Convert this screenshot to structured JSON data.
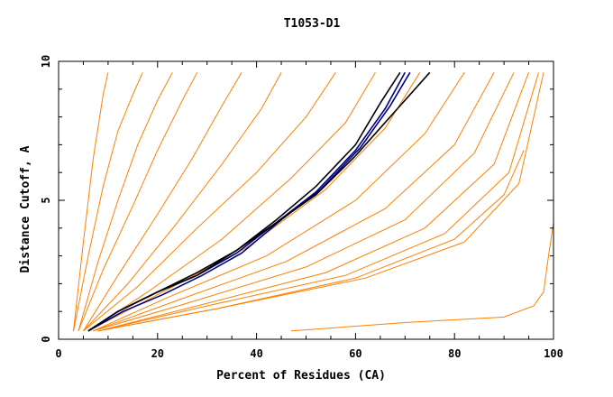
{
  "chart_data": {
    "type": "line",
    "title": "T1053-D1",
    "xlabel": "Percent of Residues (CA)",
    "ylabel": "Distance Cutoff, A",
    "xlim": [
      0,
      100
    ],
    "ylim": [
      0,
      10
    ],
    "x_ticks": [
      "0",
      "20",
      "40",
      "60",
      "80",
      "100"
    ],
    "y_ticks": [
      "0",
      "5",
      "10"
    ],
    "grid": false,
    "colors": {
      "models": "#ff8000",
      "highlight": "#000080",
      "reference": "#000000"
    },
    "series": [
      {
        "color": "#ff8000",
        "x": [
          3,
          5,
          7,
          9,
          10
        ],
        "y": [
          0.3,
          3.5,
          6.5,
          8.8,
          9.6
        ]
      },
      {
        "color": "#ff8000",
        "x": [
          3,
          6,
          9,
          12,
          15,
          17
        ],
        "y": [
          0.3,
          3.0,
          5.5,
          7.5,
          8.8,
          9.6
        ]
      },
      {
        "color": "#ff8000",
        "x": [
          4,
          8,
          12,
          16,
          20,
          23
        ],
        "y": [
          0.3,
          2.8,
          5.0,
          7.0,
          8.6,
          9.6
        ]
      },
      {
        "color": "#ff8000",
        "x": [
          4,
          9,
          15,
          20,
          25,
          28
        ],
        "y": [
          0.3,
          2.5,
          4.8,
          6.8,
          8.6,
          9.6
        ]
      },
      {
        "color": "#ff8000",
        "x": [
          5,
          12,
          20,
          27,
          33,
          37
        ],
        "y": [
          0.3,
          2.3,
          4.5,
          6.5,
          8.4,
          9.6
        ]
      },
      {
        "color": "#ff8000",
        "x": [
          5,
          14,
          24,
          33,
          41,
          45
        ],
        "y": [
          0.3,
          2.0,
          4.2,
          6.3,
          8.3,
          9.6
        ]
      },
      {
        "color": "#ff8000",
        "x": [
          5,
          16,
          28,
          40,
          50,
          56
        ],
        "y": [
          0.3,
          1.9,
          4.0,
          6.0,
          8.0,
          9.6
        ]
      },
      {
        "color": "#ff8000",
        "x": [
          6,
          18,
          33,
          47,
          58,
          64
        ],
        "y": [
          0.3,
          1.7,
          3.6,
          5.8,
          7.8,
          9.6
        ]
      },
      {
        "color": "#ff8000",
        "x": [
          6,
          20,
          38,
          54,
          66,
          73
        ],
        "y": [
          0.3,
          1.6,
          3.3,
          5.4,
          7.6,
          9.6
        ]
      },
      {
        "color": "#ff8000",
        "x": [
          7,
          22,
          42,
          60,
          74,
          82
        ],
        "y": [
          0.3,
          1.5,
          3.0,
          5.0,
          7.4,
          9.6
        ]
      },
      {
        "color": "#ff8000",
        "x": [
          7,
          24,
          46,
          66,
          80,
          88
        ],
        "y": [
          0.3,
          1.4,
          2.8,
          4.7,
          7.0,
          9.6
        ]
      },
      {
        "color": "#ff8000",
        "x": [
          7,
          26,
          50,
          70,
          84,
          92
        ],
        "y": [
          0.3,
          1.3,
          2.6,
          4.3,
          6.7,
          9.6
        ]
      },
      {
        "color": "#ff8000",
        "x": [
          8,
          28,
          54,
          74,
          88,
          95
        ],
        "y": [
          0.3,
          1.2,
          2.4,
          4.0,
          6.3,
          9.6
        ]
      },
      {
        "color": "#ff8000",
        "x": [
          8,
          30,
          58,
          78,
          91,
          97
        ],
        "y": [
          0.3,
          1.2,
          2.3,
          3.8,
          6.0,
          9.6
        ]
      },
      {
        "color": "#ff8000",
        "x": [
          8,
          32,
          62,
          82,
          93,
          98
        ],
        "y": [
          0.3,
          1.1,
          2.2,
          3.5,
          5.6,
          9.6
        ]
      },
      {
        "color": "#ff8000",
        "x": [
          8,
          32,
          60,
          80,
          90,
          94
        ],
        "y": [
          0.3,
          1.1,
          2.2,
          3.6,
          5.2,
          6.8
        ]
      },
      {
        "color": "#ff8000",
        "x": [
          47,
          70,
          90,
          96,
          98,
          99,
          100,
          100
        ],
        "y": [
          0.3,
          0.6,
          0.8,
          1.2,
          1.7,
          3.0,
          4.2,
          9.6
        ]
      },
      {
        "color": "#000080",
        "x": [
          6,
          12,
          20,
          28,
          36,
          44,
          52,
          60,
          66,
          70
        ],
        "y": [
          0.3,
          1.0,
          1.7,
          2.3,
          3.1,
          4.2,
          5.3,
          6.8,
          8.3,
          9.6
        ]
      },
      {
        "color": "#000080",
        "x": [
          6,
          13,
          21,
          29,
          37,
          45,
          53,
          61,
          67,
          71
        ],
        "y": [
          0.3,
          1.0,
          1.6,
          2.3,
          3.1,
          4.3,
          5.4,
          6.9,
          8.4,
          9.6
        ]
      },
      {
        "color": "#000000",
        "x": [
          6,
          12,
          20,
          28,
          36,
          44,
          52,
          60,
          68,
          75
        ],
        "y": [
          0.3,
          1.0,
          1.7,
          2.3,
          3.2,
          4.2,
          5.2,
          6.6,
          8.2,
          9.6
        ]
      },
      {
        "color": "#000000",
        "x": [
          6,
          12,
          20,
          28,
          36,
          44,
          52,
          60,
          65,
          69
        ],
        "y": [
          0.3,
          1.0,
          1.7,
          2.4,
          3.2,
          4.3,
          5.5,
          7.0,
          8.5,
          9.6
        ]
      }
    ]
  }
}
